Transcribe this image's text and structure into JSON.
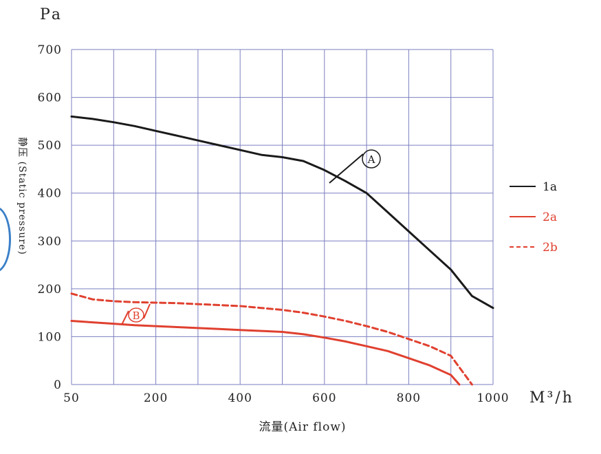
{
  "chart_data": {
    "type": "line",
    "y_unit": "Pa",
    "x_unit": "M³/h",
    "ylabel": "静压 (Static pressure)",
    "xlabel": "流量(Air flow)",
    "x_ticks": [
      50,
      200,
      400,
      600,
      800,
      1000
    ],
    "y_ticks": [
      0,
      100,
      200,
      300,
      400,
      500,
      600,
      700
    ],
    "xlim": [
      0,
      1000
    ],
    "ylim": [
      0,
      700
    ],
    "grid": true,
    "legend_position": "right",
    "series": [
      {
        "name": "1a",
        "color": "#1a1a1a",
        "style": "solid",
        "x": [
          0,
          50,
          100,
          150,
          200,
          250,
          300,
          350,
          400,
          450,
          500,
          550,
          600,
          650,
          700,
          750,
          800,
          850,
          900,
          950,
          1000
        ],
        "y": [
          560,
          555,
          548,
          540,
          530,
          520,
          510,
          500,
          490,
          480,
          475,
          467,
          448,
          425,
          400,
          360,
          320,
          280,
          240,
          185,
          160
        ]
      },
      {
        "name": "2a",
        "color": "#e0402f",
        "style": "solid",
        "x": [
          0,
          50,
          100,
          150,
          200,
          250,
          300,
          350,
          400,
          450,
          500,
          550,
          600,
          650,
          700,
          750,
          800,
          850,
          900,
          920
        ],
        "y": [
          133,
          130,
          127,
          124,
          122,
          120,
          118,
          116,
          114,
          112,
          110,
          105,
          98,
          90,
          80,
          70,
          55,
          40,
          20,
          0
        ]
      },
      {
        "name": "2b",
        "color": "#e0402f",
        "style": "dashed",
        "x": [
          0,
          50,
          100,
          150,
          200,
          250,
          300,
          350,
          400,
          450,
          500,
          550,
          600,
          650,
          700,
          750,
          800,
          850,
          900,
          950
        ],
        "y": [
          190,
          178,
          174,
          172,
          171,
          170,
          168,
          166,
          164,
          160,
          156,
          150,
          142,
          133,
          122,
          110,
          95,
          80,
          60,
          0
        ]
      }
    ],
    "annotations": [
      {
        "label": "A",
        "color": "#1a1a1a"
      },
      {
        "label": "B",
        "color": "#e0402f"
      }
    ]
  }
}
